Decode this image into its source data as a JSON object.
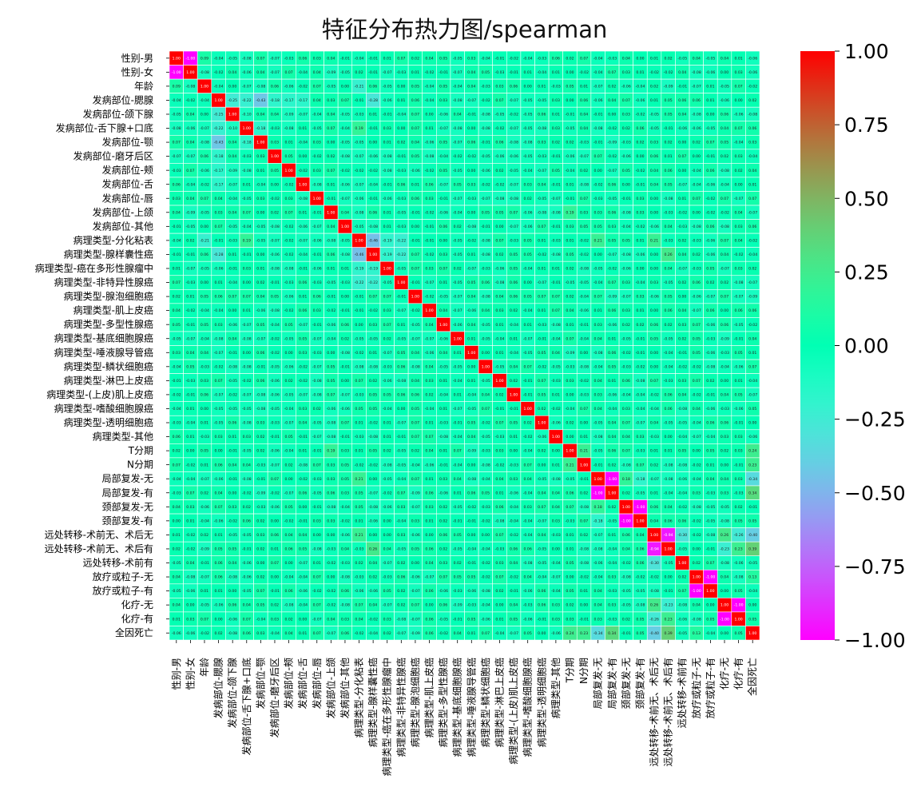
{
  "chart_data": {
    "type": "heatmap",
    "title": "特征分布热力图/spearman",
    "labels": [
      "性别-男",
      "性别-女",
      "年龄",
      "发病部位-腮腺",
      "发病部位-颌下腺",
      "发病部位-舌下腺+口底",
      "发病部位-颚",
      "发病部位-磨牙后区",
      "发病部位-颊",
      "发病部位-舌",
      "发病部位-唇",
      "发病部位-上颌",
      "发病部位-其他",
      "病理类型-分化粘表",
      "病理类型-腺样囊性癌",
      "病理类型-癌在多形性腺瘤中",
      "病理类型-非特异性腺癌",
      "病理类型-腺泡细胞癌",
      "病理类型-肌上皮癌",
      "病理类型-多型性腺癌",
      "病理类型-基底细胞腺癌",
      "病理类型-唾液腺导管癌",
      "病理类型-鳞状细胞癌",
      "病理类型-淋巴上皮癌",
      "病理类型-(上皮)肌上皮癌",
      "病理类型-嗜酸细胞腺癌",
      "病理类型-透明细胞癌",
      "病理类型-其他",
      "T分期",
      "N分期",
      "局部复发-无",
      "局部复发-有",
      "颈部复发-无",
      "颈部复发-有",
      "远处转移-术前无、术后无",
      "远处转移-术前无、术后有",
      "远处转移-术前有",
      "放疗或粒子-无",
      "放疗或粒子-有",
      "化疗-无",
      "化疗-有",
      "全因死亡"
    ],
    "known_values": [
      {
        "row": 0,
        "col": 1,
        "value": -1.0
      },
      {
        "row": 32,
        "col": 33,
        "value": -1.0
      },
      {
        "row": 30,
        "col": 31,
        "value": -1.0
      },
      {
        "row": 37,
        "col": 38,
        "value": -1.0
      },
      {
        "row": 39,
        "col": 40,
        "value": -1.0
      },
      {
        "row": 34,
        "col": 35,
        "value": -0.94
      },
      {
        "row": 3,
        "col": 6,
        "value": -0.43
      },
      {
        "row": 13,
        "col": 14,
        "value": -0.46
      },
      {
        "row": 34,
        "col": 41,
        "value": -0.4
      },
      {
        "row": 35,
        "col": 41,
        "value": 0.39
      },
      {
        "row": 30,
        "col": 41,
        "value": -0.34
      },
      {
        "row": 31,
        "col": 41,
        "value": 0.34
      },
      {
        "row": 3,
        "col": 4,
        "value": -0.25
      },
      {
        "row": 3,
        "col": 14,
        "value": -0.28
      },
      {
        "row": 13,
        "col": 15,
        "value": -0.19
      },
      {
        "row": 13,
        "col": 16,
        "value": -0.22
      },
      {
        "row": 13,
        "col": 30,
        "value": 0.21
      },
      {
        "row": 13,
        "col": 34,
        "value": 0.21
      },
      {
        "row": 14,
        "col": 15,
        "value": -0.19
      },
      {
        "row": 14,
        "col": 16,
        "value": -0.22
      },
      {
        "row": 14,
        "col": 35,
        "value": 0.26
      },
      {
        "row": 28,
        "col": 29,
        "value": 0.21
      },
      {
        "row": 28,
        "col": 41,
        "value": 0.24
      },
      {
        "row": 29,
        "col": 41,
        "value": 0.23
      },
      {
        "row": 34,
        "col": 39,
        "value": 0.26
      },
      {
        "row": 35,
        "col": 39,
        "value": -0.23
      },
      {
        "row": 34,
        "col": 40,
        "value": -0.26
      },
      {
        "row": 35,
        "col": 40,
        "value": 0.23
      },
      {
        "row": 2,
        "col": 13,
        "value": -0.21
      },
      {
        "row": 11,
        "col": 28,
        "value": 0.19
      },
      {
        "row": 5,
        "col": 13,
        "value": 0.19
      },
      {
        "row": 3,
        "col": 5,
        "value": -0.22
      },
      {
        "row": 5,
        "col": 6,
        "value": -0.18
      },
      {
        "row": 4,
        "col": 5,
        "value": -0.1
      },
      {
        "row": 3,
        "col": 7,
        "value": -0.18
      },
      {
        "row": 3,
        "col": 8,
        "value": -0.17
      },
      {
        "row": 3,
        "col": 9,
        "value": -0.17
      },
      {
        "row": 34,
        "col": 36,
        "value": -0.3
      },
      {
        "row": 30,
        "col": 32,
        "value": 0.18
      },
      {
        "row": 30,
        "col": 33,
        "value": -0.18
      },
      {
        "row": 37,
        "col": 41,
        "value": 0.13
      },
      {
        "row": 0,
        "col": 2,
        "value": 0.09
      }
    ],
    "vmin": -1.0,
    "vmax": 1.0,
    "colorbar_ticks": [
      "1.00",
      "0.75",
      "0.50",
      "0.25",
      "0.00",
      "−0.25",
      "−0.50",
      "−0.75",
      "−1.00"
    ],
    "colormap": "rainbow",
    "annotated": true,
    "value_format": "2 decimals",
    "grid": true
  }
}
